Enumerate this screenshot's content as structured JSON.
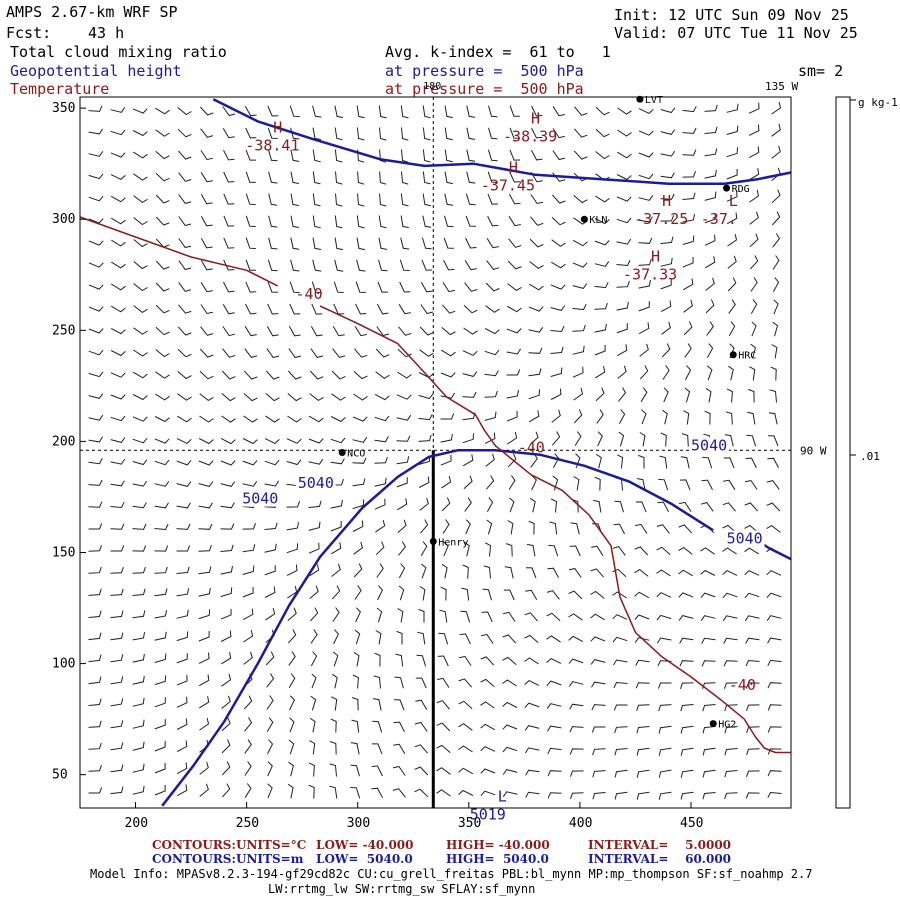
{
  "header": {
    "model": "AMPS 2.67-km WRF SP",
    "forecast_label": "Fcst:",
    "forecast_value": "43 h",
    "init": "Init: 12 UTC Sun 09 Nov 25",
    "valid": "Valid: 07 UTC Tue 11 Nov 25",
    "field1": "Total cloud mixing ratio",
    "field2": "Geopotential height",
    "field3": "Temperature",
    "avg_kindex": "Avg. k-index =  61 to   1",
    "pressure1": "at pressure =  500 hPa",
    "pressure2": "at pressure =  500 hPa",
    "smoothing": "sm= 2"
  },
  "colorbar": {
    "units": "g kg-1",
    "tick_label": ".01"
  },
  "colors": {
    "height": "#1c1c9a",
    "temperature": "#8b1a1a",
    "grid": "#000000"
  },
  "chart_data": {
    "type": "contour-map",
    "title": "Total cloud mixing ratio / Geopotential height / Temperature at 500 hPa",
    "xlim": [
      175,
      495
    ],
    "ylim": [
      35,
      355
    ],
    "xticks": [
      200,
      250,
      300,
      350,
      400,
      450
    ],
    "yticks": [
      50,
      100,
      150,
      200,
      250,
      300,
      350
    ],
    "longitude_labels": [
      "180",
      "135 W",
      "90 W"
    ],
    "crosshair": {
      "x": 334,
      "y": 196
    },
    "cross_section_line": {
      "x": 334,
      "y_from": 35,
      "y_to": 196
    },
    "stations": [
      {
        "name": "LVT",
        "x": 427,
        "y": 354
      },
      {
        "name": "RDG",
        "x": 466,
        "y": 314
      },
      {
        "name": "KLN",
        "x": 402,
        "y": 300
      },
      {
        "name": "HRC",
        "x": 469,
        "y": 239
      },
      {
        "name": "NCO",
        "x": 293,
        "y": 195
      },
      {
        "name": "Henry",
        "x": 334,
        "y": 155
      },
      {
        "name": "HG2",
        "x": 460,
        "y": 73
      }
    ],
    "extrema": [
      {
        "marker": "H",
        "value": "-38.41",
        "x": 262,
        "y": 339
      },
      {
        "marker": "H",
        "value": "-38.39",
        "x": 378,
        "y": 343
      },
      {
        "marker": "H",
        "value": "-37.45",
        "x": 368,
        "y": 321
      },
      {
        "marker": "H",
        "value": "-37.25",
        "x": 437,
        "y": 306
      },
      {
        "marker": "L",
        "value": "-37.",
        "x": 467,
        "y": 306
      },
      {
        "marker": "H",
        "value": "-37.33",
        "x": 432,
        "y": 281
      },
      {
        "marker": "L",
        "value": "5019",
        "x": 363,
        "y": 38
      }
    ],
    "height_contour": {
      "value": 5040,
      "labels": [
        "5040",
        "5040",
        "5040",
        "5040"
      ],
      "segments": [
        [
          [
            212,
            36
          ],
          [
            226,
            54
          ],
          [
            240,
            74
          ],
          [
            255,
            100
          ],
          [
            269,
            126
          ],
          [
            283,
            148
          ],
          [
            302,
            170
          ],
          [
            318,
            184
          ],
          [
            332,
            193
          ],
          [
            345,
            196
          ],
          [
            362,
            196
          ],
          [
            382,
            194
          ],
          [
            402,
            189
          ],
          [
            422,
            182
          ],
          [
            441,
            172
          ],
          [
            460,
            160
          ]
        ],
        [
          [
            235,
            354
          ],
          [
            255,
            344
          ],
          [
            280,
            336
          ],
          [
            310,
            327
          ],
          [
            330,
            324
          ],
          [
            352,
            325
          ],
          [
            380,
            320
          ],
          [
            410,
            318
          ],
          [
            440,
            316
          ],
          [
            465,
            316
          ],
          [
            480,
            318
          ],
          [
            495,
            321
          ]
        ],
        [
          [
            476,
            158
          ],
          [
            485,
            152
          ],
          [
            495,
            147
          ]
        ]
      ]
    },
    "temperature_contour": {
      "value": -40,
      "labels": [
        "-40",
        "-40",
        "-40"
      ],
      "segments": [
        [
          [
            175,
            301
          ],
          [
            200,
            292
          ],
          [
            225,
            283
          ],
          [
            250,
            277
          ],
          [
            264,
            270
          ]
        ],
        [
          [
            283,
            261
          ],
          [
            300,
            253
          ],
          [
            318,
            244
          ],
          [
            330,
            231
          ],
          [
            340,
            220
          ],
          [
            353,
            212
          ],
          [
            357,
            205
          ],
          [
            362,
            198
          ],
          [
            378,
            185
          ],
          [
            392,
            178
          ],
          [
            404,
            167
          ],
          [
            414,
            153
          ],
          [
            418,
            130
          ],
          [
            425,
            114
          ],
          [
            437,
            103
          ],
          [
            450,
            94
          ],
          [
            463,
            84
          ],
          [
            474,
            75
          ],
          [
            479,
            67
          ],
          [
            483,
            62
          ],
          [
            488,
            60
          ],
          [
            495,
            60
          ]
        ]
      ]
    },
    "wind_barbs": "uniform grid of 10-knot wind barbs over the domain"
  },
  "footer": {
    "contours_temp_label": "CONTOURS:",
    "contours_temp_units": "UNITS=°C",
    "contours_temp_low": "LOW= -40.000",
    "contours_temp_high": "HIGH= -40.000",
    "contours_temp_interval": "INTERVAL=    5.0000",
    "contours_hgt_label": "CONTOURS:",
    "contours_hgt_units": "UNITS=m",
    "contours_hgt_low": "LOW=  5040.0",
    "contours_hgt_high": "HIGH=  5040.0",
    "contours_hgt_interval": "INTERVAL=    60.000",
    "model_info_1": "Model Info: MPASv8.2.3-194-gf29cd82c CU:cu_grell_freitas PBL:bl_mynn MP:mp_thompson SF:sf_noahmp 2.7",
    "model_info_2": "LW:rrtmg_lw SW:rrtmg_sw SFLAY:sf_mynn"
  }
}
